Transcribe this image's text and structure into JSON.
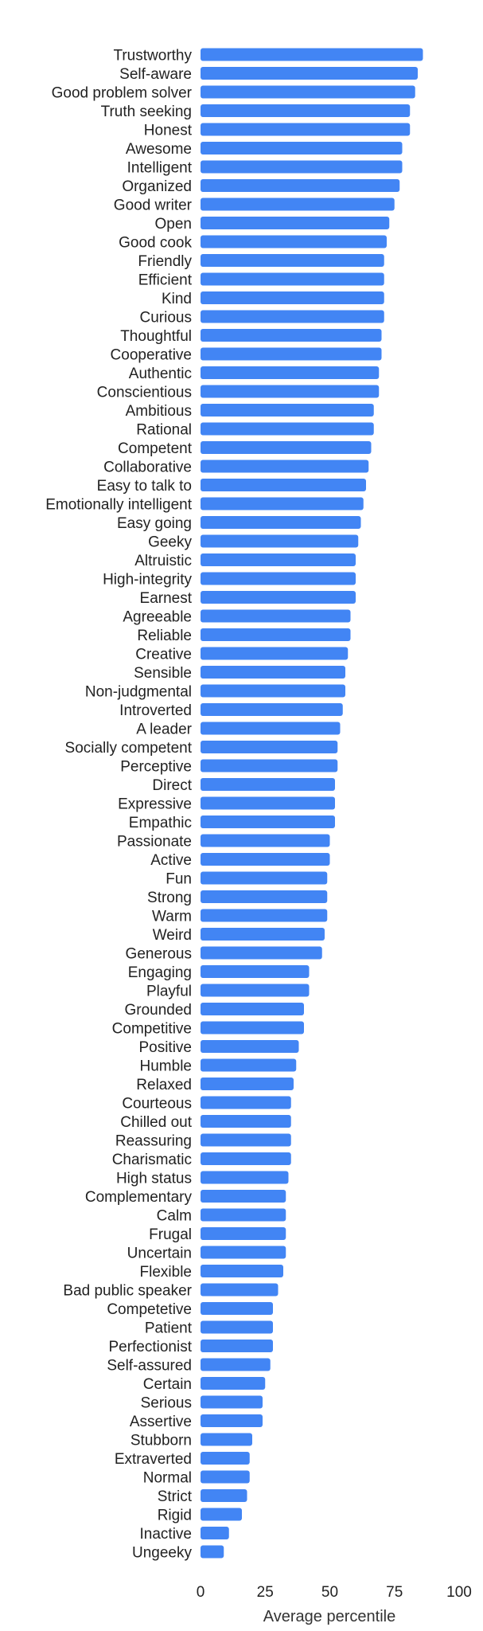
{
  "chart_data": {
    "type": "bar",
    "orientation": "horizontal",
    "title": "",
    "xlabel": "Average percentile",
    "ylabel": "",
    "xlim": [
      0,
      100
    ],
    "xticks": [
      0,
      25,
      50,
      75,
      100
    ],
    "grid": false,
    "bar_color": "#4285f4",
    "categories": [
      "Trustworthy",
      "Self-aware",
      "Good problem solver",
      "Truth seeking",
      "Honest",
      "Awesome",
      "Intelligent",
      "Organized",
      "Good writer",
      "Open",
      "Good cook",
      "Friendly",
      "Efficient",
      "Kind",
      "Curious",
      "Thoughtful",
      "Cooperative",
      "Authentic",
      "Conscientious",
      "Ambitious",
      "Rational",
      "Competent",
      "Collaborative",
      "Easy to talk to",
      "Emotionally intelligent",
      "Easy going",
      "Geeky",
      "Altruistic",
      "High-integrity",
      "Earnest",
      "Agreeable",
      "Reliable",
      "Creative",
      "Sensible",
      "Non-judgmental",
      "Introverted",
      "A leader",
      "Socially competent",
      "Perceptive",
      "Direct",
      "Expressive",
      "Empathic",
      "Passionate",
      "Active",
      "Fun",
      "Strong",
      "Warm",
      "Weird",
      "Generous",
      "Engaging",
      "Playful",
      "Grounded",
      "Competitive",
      "Positive",
      "Humble",
      "Relaxed",
      "Courteous",
      "Chilled out",
      "Reassuring",
      "Charismatic",
      "High status",
      "Complementary",
      "Calm",
      "Frugal",
      "Uncertain",
      "Flexible",
      "Bad public speaker",
      "Competetive",
      "Patient",
      "Perfectionist",
      "Self-assured",
      "Certain",
      "Serious",
      "Assertive",
      "Stubborn",
      "Extraverted",
      "Normal",
      "Strict",
      "Rigid",
      "Inactive",
      "Ungeeky"
    ],
    "values": [
      86,
      84,
      83,
      81,
      81,
      78,
      78,
      77,
      75,
      73,
      72,
      71,
      71,
      71,
      71,
      70,
      70,
      69,
      69,
      67,
      67,
      66,
      65,
      64,
      63,
      62,
      61,
      60,
      60,
      60,
      58,
      58,
      57,
      56,
      56,
      55,
      54,
      53,
      53,
      52,
      52,
      52,
      50,
      50,
      49,
      49,
      49,
      48,
      47,
      42,
      42,
      40,
      40,
      38,
      37,
      36,
      35,
      35,
      35,
      35,
      34,
      33,
      33,
      33,
      33,
      32,
      30,
      28,
      28,
      28,
      27,
      25,
      24,
      24,
      20,
      19,
      19,
      18,
      16,
      11,
      9
    ]
  }
}
